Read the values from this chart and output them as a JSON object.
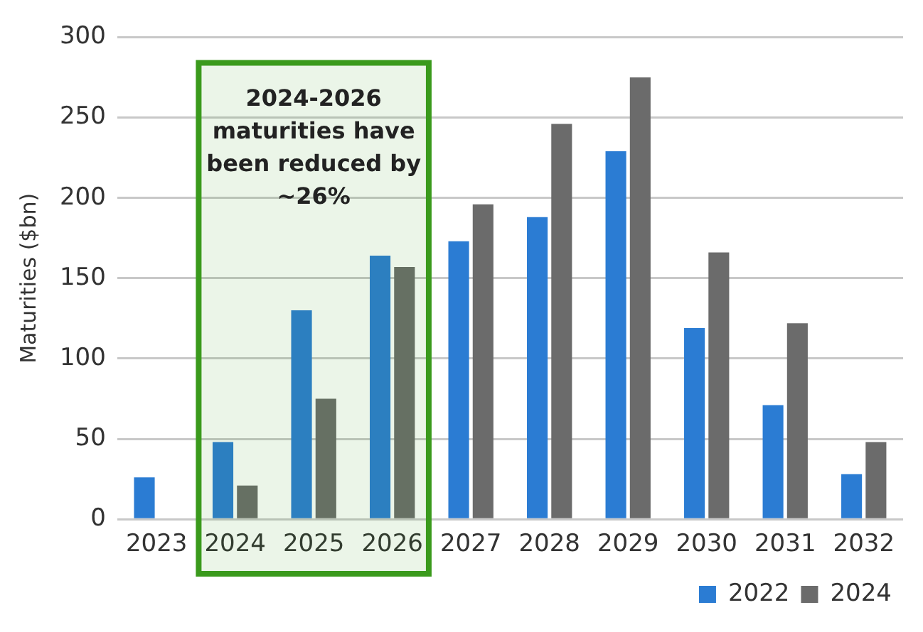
{
  "chart_data": {
    "type": "bar",
    "ylabel": "Maturities ($bn)",
    "categories": [
      "2023",
      "2024",
      "2025",
      "2026",
      "2027",
      "2028",
      "2029",
      "2030",
      "2031",
      "2032"
    ],
    "series": [
      {
        "name": "2022",
        "color": "#2b7cd3",
        "values": [
          26,
          48,
          130,
          164,
          173,
          188,
          229,
          119,
          71,
          28
        ]
      },
      {
        "name": "2024",
        "color": "#6b6b6b",
        "values": [
          null,
          21,
          75,
          157,
          196,
          246,
          275,
          166,
          122,
          48
        ]
      }
    ],
    "ylim": [
      0,
      300
    ],
    "yticks": [
      0,
      50,
      100,
      150,
      200,
      250,
      300
    ],
    "grid": "y",
    "legend": "bottom right",
    "bands": [
      {
        "axis": "x",
        "from": "2024",
        "to": "2026",
        "label": "2024-2026 maturities have been reduced by ~26%",
        "color": "#3a9a1c"
      }
    ]
  }
}
